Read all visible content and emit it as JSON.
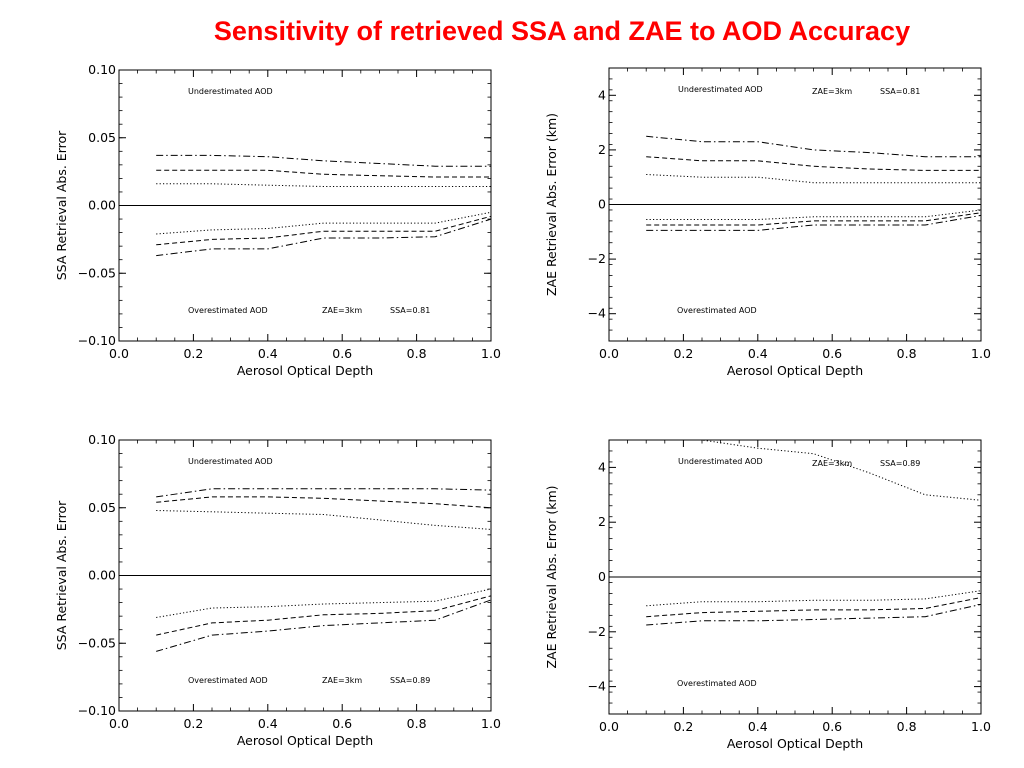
{
  "page": {
    "title": "Sensitivity of retrieved SSA and ZAE to AOD Accuracy"
  },
  "chart_data": [
    {
      "type": "line",
      "xlabel": "Aerosol Optical Depth",
      "ylabel": "SSA Retrieval Abs. Error",
      "xlim": [
        0.0,
        1.0
      ],
      "ylim": [
        -0.1,
        0.1
      ],
      "xticks": [
        "0.0",
        "0.2",
        "0.4",
        "0.6",
        "0.8",
        "1.0"
      ],
      "yticks": [
        "0.10",
        "0.05",
        "0.00",
        "−0.05",
        "−0.10"
      ],
      "annotations": {
        "top": "Underestimated AOD",
        "bottom": "Overestimated AOD",
        "zae": "ZAE=3km",
        "ssa": "SSA=0.81"
      },
      "x": [
        0.1,
        0.25,
        0.4,
        0.55,
        0.7,
        0.85,
        1.0
      ],
      "series": [
        {
          "style": "dashdot",
          "values": [
            0.037,
            0.037,
            0.036,
            0.033,
            0.031,
            0.029,
            0.029
          ]
        },
        {
          "style": "dashed",
          "values": [
            0.026,
            0.026,
            0.026,
            0.023,
            0.022,
            0.021,
            0.021
          ]
        },
        {
          "style": "dotted",
          "values": [
            0.016,
            0.016,
            0.015,
            0.014,
            0.014,
            0.014,
            0.014
          ]
        },
        {
          "style": "dotted",
          "values": [
            -0.021,
            -0.018,
            -0.017,
            -0.013,
            -0.013,
            -0.013,
            -0.005
          ]
        },
        {
          "style": "dashed",
          "values": [
            -0.029,
            -0.025,
            -0.024,
            -0.019,
            -0.019,
            -0.019,
            -0.008
          ]
        },
        {
          "style": "dashdot",
          "values": [
            -0.037,
            -0.032,
            -0.032,
            -0.024,
            -0.024,
            -0.023,
            -0.01
          ]
        }
      ]
    },
    {
      "type": "line",
      "xlabel": "Aerosol Optical Depth",
      "ylabel": "ZAE Retrieval Abs. Error (km)",
      "xlim": [
        0.0,
        1.0
      ],
      "ylim": [
        -5,
        5
      ],
      "xticks": [
        "0.0",
        "0.2",
        "0.4",
        "0.6",
        "0.8",
        "1.0"
      ],
      "yticks": [
        "4",
        "2",
        "0",
        "−2",
        "−4"
      ],
      "annotations": {
        "top": "Underestimated AOD",
        "bottom": "Overestimated AOD",
        "zae": "ZAE=3km",
        "ssa": "SSA=0.81"
      },
      "x": [
        0.1,
        0.25,
        0.4,
        0.55,
        0.7,
        0.85,
        1.0
      ],
      "series": [
        {
          "style": "dashdot",
          "values": [
            2.5,
            2.3,
            2.3,
            2.0,
            1.9,
            1.75,
            1.75
          ]
        },
        {
          "style": "dashed",
          "values": [
            1.75,
            1.6,
            1.6,
            1.4,
            1.3,
            1.25,
            1.25
          ]
        },
        {
          "style": "dotted",
          "values": [
            1.1,
            1.0,
            1.0,
            0.8,
            0.8,
            0.8,
            0.8
          ]
        },
        {
          "style": "dotted",
          "values": [
            -0.55,
            -0.55,
            -0.55,
            -0.45,
            -0.45,
            -0.45,
            -0.2
          ]
        },
        {
          "style": "dashed",
          "values": [
            -0.75,
            -0.75,
            -0.75,
            -0.6,
            -0.6,
            -0.6,
            -0.3
          ]
        },
        {
          "style": "dashdot",
          "values": [
            -0.95,
            -0.95,
            -0.95,
            -0.75,
            -0.75,
            -0.75,
            -0.4
          ]
        }
      ]
    },
    {
      "type": "line",
      "xlabel": "Aerosol Optical Depth",
      "ylabel": "SSA Retrieval Abs. Error",
      "xlim": [
        0.0,
        1.0
      ],
      "ylim": [
        -0.1,
        0.1
      ],
      "xticks": [
        "0.0",
        "0.2",
        "0.4",
        "0.6",
        "0.8",
        "1.0"
      ],
      "yticks": [
        "0.10",
        "0.05",
        "0.00",
        "−0.05",
        "−0.10"
      ],
      "annotations": {
        "top": "Underestimated AOD",
        "bottom": "Overestimated AOD",
        "zae": "ZAE=3km",
        "ssa": "SSA=0.89"
      },
      "x": [
        0.1,
        0.25,
        0.4,
        0.55,
        0.7,
        0.85,
        1.0
      ],
      "series": [
        {
          "style": "dashdot",
          "values": [
            0.058,
            0.064,
            0.064,
            0.064,
            0.064,
            0.064,
            0.063
          ]
        },
        {
          "style": "dashed",
          "values": [
            0.054,
            0.058,
            0.058,
            0.057,
            0.055,
            0.053,
            0.05
          ]
        },
        {
          "style": "dotted",
          "values": [
            0.048,
            0.047,
            0.046,
            0.045,
            0.041,
            0.037,
            0.034
          ]
        },
        {
          "style": "dotted",
          "values": [
            -0.031,
            -0.024,
            -0.023,
            -0.021,
            -0.02,
            -0.019,
            -0.01
          ]
        },
        {
          "style": "dashed",
          "values": [
            -0.044,
            -0.035,
            -0.033,
            -0.029,
            -0.028,
            -0.026,
            -0.015
          ]
        },
        {
          "style": "dashdot",
          "values": [
            -0.056,
            -0.044,
            -0.041,
            -0.037,
            -0.035,
            -0.033,
            -0.018
          ]
        }
      ]
    },
    {
      "type": "line",
      "xlabel": "Aerosol Optical Depth",
      "ylabel": "ZAE Retrieval Abs. Error (km)",
      "xlim": [
        0.0,
        1.0
      ],
      "ylim": [
        -5,
        5
      ],
      "xticks": [
        "0.0",
        "0.2",
        "0.4",
        "0.6",
        "0.8",
        "1.0"
      ],
      "yticks": [
        "4",
        "2",
        "0",
        "−2",
        "−4"
      ],
      "annotations": {
        "top": "Underestimated AOD",
        "bottom": "Overestimated AOD",
        "zae": "ZAE=3km",
        "ssa": "SSA=0.89"
      },
      "x": [
        0.1,
        0.25,
        0.4,
        0.55,
        0.7,
        0.85,
        1.0
      ],
      "series": [
        {
          "style": "dotted",
          "values": [
            5.3,
            5.0,
            4.7,
            4.5,
            3.8,
            3.0,
            2.8
          ]
        },
        {
          "style": "dotted",
          "values": [
            -1.05,
            -0.9,
            -0.9,
            -0.85,
            -0.85,
            -0.8,
            -0.5
          ]
        },
        {
          "style": "dashed",
          "values": [
            -1.45,
            -1.3,
            -1.25,
            -1.2,
            -1.2,
            -1.15,
            -0.75
          ]
        },
        {
          "style": "dashdot",
          "values": [
            -1.75,
            -1.6,
            -1.6,
            -1.55,
            -1.5,
            -1.45,
            -1.0
          ]
        }
      ]
    }
  ]
}
